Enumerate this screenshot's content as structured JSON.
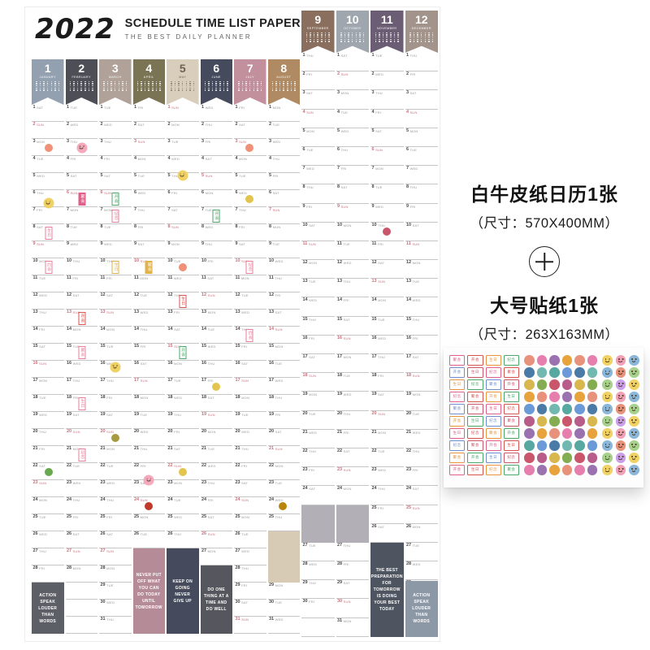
{
  "product": {
    "line1": "白牛皮纸日历1张",
    "size1": "（尺寸：570X400MM）",
    "plus_label": "+",
    "line2": "大号贴纸1张",
    "size2": "（尺寸：263X163MM）"
  },
  "calendar": {
    "year": "2022",
    "title": "SCHEDULE TIME LIST PAPER",
    "subtitle": "THE BEST DAILY PLANNER",
    "dow_labels": [
      "SUN",
      "MON",
      "TUE",
      "WED",
      "THU",
      "FRI",
      "SAT"
    ],
    "months": [
      {
        "num": "1",
        "name": "JANUARY",
        "color": "#93a0b0",
        "days": 31,
        "start": 6,
        "block": {
          "text": "ACTION SPEAK LOUDER THAN WORDS",
          "color": "#5c6066",
          "from": 29,
          "to": 31
        }
      },
      {
        "num": "2",
        "name": "FEBRUARY",
        "color": "#4d4e56",
        "days": 28,
        "start": 2
      },
      {
        "num": "3",
        "name": "MARCH",
        "color": "#b0a298",
        "days": 31,
        "start": 2
      },
      {
        "num": "4",
        "name": "APRIL",
        "color": "#7a7354",
        "days": 30,
        "start": 5,
        "block": {
          "text": "NEVER PUT OFF WHAT YOU CAN DO TODAY UNTIL TOMORROW",
          "color": "#b48b97",
          "from": 27,
          "to": 31
        }
      },
      {
        "num": "5",
        "name": "MAY",
        "color": "#d9cdbb",
        "light": true,
        "days": 31,
        "start": 0,
        "block": {
          "text": "KEEP ON GOING NEVER GIVE UP",
          "color": "#454b5c",
          "from": 27,
          "to": 31
        }
      },
      {
        "num": "6",
        "name": "JUNE",
        "color": "#454b5c",
        "days": 30,
        "start": 3,
        "block": {
          "text": "DO ONE THING AT A TIME AND DO WELL",
          "color": "#55565e",
          "from": 28,
          "to": 31
        }
      },
      {
        "num": "7",
        "name": "JULY",
        "color": "#c28f9c",
        "days": 31,
        "start": 5
      },
      {
        "num": "8",
        "name": "AUGUST",
        "color": "#b08a62",
        "days": 31,
        "start": 1,
        "block": {
          "text": "",
          "color": "#d8cbb6",
          "from": 26,
          "to": 28
        }
      },
      {
        "num": "9",
        "name": "SEPTEMBER",
        "color": "#8a6f5e",
        "days": 30,
        "start": 4,
        "block": {
          "text": "",
          "color": "#b3afb6",
          "from": 25,
          "to": 26
        }
      },
      {
        "num": "10",
        "name": "OCTOBER",
        "color": "#9fa6ad",
        "days": 31,
        "start": 6,
        "block": {
          "text": "",
          "color": "#b3afb6",
          "from": 25,
          "to": 26
        }
      },
      {
        "num": "11",
        "name": "NOVEMBER",
        "color": "#6b5d73",
        "days": 30,
        "start": 2,
        "block": {
          "text": "THE BEST PREPARATION FOR TOMORROW IS DOING YOUR BEST TODAY",
          "color": "#4f5560",
          "from": 27,
          "to": 31
        }
      },
      {
        "num": "12",
        "name": "DECEMBER",
        "color": "#a2948b",
        "days": 31,
        "start": 4,
        "block": {
          "text": "ACTION SPEAK LOUDER THAN WORDS",
          "color": "#8d98a6",
          "from": 29,
          "to": 31
        }
      }
    ],
    "stickers": [
      {
        "type": "dot",
        "color": "#ef9077",
        "month": 1,
        "day": 3
      },
      {
        "type": "smiley",
        "color": "#f4a9bc",
        "month": 2,
        "day": 3
      },
      {
        "type": "smiley",
        "color": "#f0d264",
        "month": 5,
        "day": 4
      },
      {
        "type": "dot",
        "color": "#ef9077",
        "month": 7,
        "day": 3
      },
      {
        "type": "smiley",
        "color": "#f0d264",
        "month": 1,
        "day": 5
      },
      {
        "type": "tag",
        "label": "聚会",
        "color": "#e0608a",
        "solid": true,
        "month": 2,
        "day": 6
      },
      {
        "type": "tag",
        "label": "开会",
        "color": "#4aa86a",
        "month": 3,
        "day": 6
      },
      {
        "type": "tag",
        "label": "生日",
        "color": "#e87f9a",
        "month": 1,
        "day": 8
      },
      {
        "type": "tag",
        "label": "纪念",
        "color": "#e87f9a",
        "month": 3,
        "day": 7
      },
      {
        "type": "tag",
        "label": "开会",
        "color": "#4aa86a",
        "month": 6,
        "day": 7
      },
      {
        "type": "dot",
        "color": "#e3c44c",
        "month": 7,
        "day": 6
      },
      {
        "type": "tag",
        "label": "约会",
        "color": "#e87f9a",
        "month": 1,
        "day": 10
      },
      {
        "type": "tag",
        "label": "生日",
        "color": "#e2b24a",
        "month": 3,
        "day": 10
      },
      {
        "type": "tag",
        "label": "聚会",
        "color": "#e2b24a",
        "solid": true,
        "month": 4,
        "day": 10
      },
      {
        "type": "dot",
        "color": "#ef9077",
        "month": 5,
        "day": 10
      },
      {
        "type": "tag",
        "label": "纪念",
        "color": "#e87f9a",
        "month": 7,
        "day": 10
      },
      {
        "type": "tag",
        "label": "开会",
        "color": "#d9534f",
        "month": 2,
        "day": 13
      },
      {
        "type": "tag",
        "label": "生日",
        "color": "#d9534f",
        "month": 5,
        "day": 12
      },
      {
        "type": "tag",
        "label": "聚会",
        "color": "#e87f9a",
        "month": 2,
        "day": 15
      },
      {
        "type": "smiley",
        "color": "#f0d264",
        "month": 3,
        "day": 14
      },
      {
        "type": "tag",
        "label": "开会",
        "color": "#4aa86a",
        "month": 5,
        "day": 15
      },
      {
        "type": "tag",
        "label": "约会",
        "color": "#e87f9a",
        "month": 7,
        "day": 14
      },
      {
        "type": "tag",
        "label": "生日",
        "color": "#e87f9a",
        "month": 2,
        "day": 18
      },
      {
        "type": "dot",
        "color": "#e3c44c",
        "month": 6,
        "day": 17
      },
      {
        "type": "dot",
        "color": "#a89a3e",
        "month": 3,
        "day": 20
      },
      {
        "type": "smiley",
        "color": "#f4a9bc",
        "month": 4,
        "day": 20
      },
      {
        "type": "tag",
        "label": "纪念",
        "color": "#e87f9a",
        "month": 2,
        "day": 21
      },
      {
        "type": "dot",
        "color": "#69a84f",
        "month": 1,
        "day": 22
      },
      {
        "type": "dot",
        "color": "#e3c44c",
        "month": 5,
        "day": 22
      },
      {
        "type": "dot",
        "color": "#c0392b",
        "month": 4,
        "day": 24
      },
      {
        "type": "dot",
        "color": "#b8860b",
        "month": 8,
        "day": 24
      },
      {
        "type": "dot",
        "color": "#c9566b",
        "month": 11,
        "day": 10
      }
    ]
  },
  "sticker_sheet": {
    "rows": 10,
    "tag_cols": 4,
    "dot_cols": 6,
    "smiley_cols": 3,
    "tag_labels": [
      "聚会",
      "开会",
      "生日",
      "纪念"
    ],
    "tag_colors": [
      "#e0608a",
      "#d9534f",
      "#e8953d",
      "#4aa86a",
      "#6f8fd0",
      "#c9566b"
    ],
    "dot_colors": [
      "#e8927c",
      "#56a8a0",
      "#d8b84e",
      "#e77fae",
      "#6a9bd8",
      "#84ac50",
      "#9b72b0",
      "#4a7ba6",
      "#c9566b",
      "#e8a33d",
      "#70b8b0",
      "#b85c8a"
    ],
    "smiley_colors": [
      "#f0d264",
      "#f2a0b5",
      "#8ab6d9",
      "#e8927c",
      "#a8d08d",
      "#c9a0e8"
    ]
  }
}
